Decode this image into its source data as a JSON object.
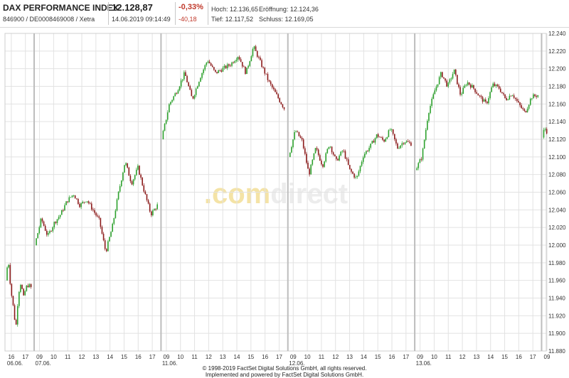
{
  "header": {
    "name": "DAX PERFORMANCE INDEX",
    "ids": "846900 / DE0008469008 / Xetra",
    "price": "12.128,87",
    "datetime": "14.06.2019 09:14:49",
    "change_pct": "-0,33%",
    "change_abs": "-40,18",
    "high": "Hoch: 12.136,65",
    "low": "Tief: 12.117,52",
    "open": "Eröffnung: 12.124,36",
    "close": "Schluss: 12.169,05"
  },
  "watermark": {
    "part1": ".com",
    "part2": "direct"
  },
  "colors": {
    "up": "#2ca02c",
    "down": "#8b1a1a",
    "grid": "#e2e2e2",
    "session": "#bdbdbd",
    "negative": "#c0392b",
    "watermark": "#f4e3a6"
  },
  "footer": {
    "line1": "© 1998-2019 FactSet Digital Solutions GmbH, all rights reserved.",
    "line2": "Implemented and powered by FactSet Digital Solutions GmbH."
  },
  "chart_data": {
    "type": "candlestick",
    "title": "",
    "xlabel": "",
    "ylabel": "",
    "ylim": [
      11880,
      12240
    ],
    "y_ticks": [
      "11.880",
      "11.900",
      "11.920",
      "11.940",
      "11.960",
      "11.980",
      "12.000",
      "12.020",
      "12.040",
      "12.060",
      "12.080",
      "12.100",
      "12.120",
      "12.140",
      "12.160",
      "12.180",
      "12.200",
      "12.220",
      "12.240"
    ],
    "y_tick_values": [
      11880,
      11900,
      11920,
      11940,
      11960,
      11980,
      12000,
      12020,
      12040,
      12060,
      12080,
      12100,
      12120,
      12140,
      12160,
      12180,
      12200,
      12220,
      12240
    ],
    "grid": true,
    "x_ticks": [
      {
        "hour": "16",
        "date": "06.06."
      },
      {
        "hour": "17",
        "date": ""
      },
      {
        "hour": "09",
        "date": "07.06."
      },
      {
        "hour": "10",
        "date": ""
      },
      {
        "hour": "11",
        "date": ""
      },
      {
        "hour": "12",
        "date": ""
      },
      {
        "hour": "13",
        "date": ""
      },
      {
        "hour": "14",
        "date": ""
      },
      {
        "hour": "15",
        "date": ""
      },
      {
        "hour": "16",
        "date": ""
      },
      {
        "hour": "17",
        "date": ""
      },
      {
        "hour": "09",
        "date": "11.06."
      },
      {
        "hour": "10",
        "date": ""
      },
      {
        "hour": "11",
        "date": ""
      },
      {
        "hour": "12",
        "date": ""
      },
      {
        "hour": "13",
        "date": ""
      },
      {
        "hour": "14",
        "date": ""
      },
      {
        "hour": "15",
        "date": ""
      },
      {
        "hour": "16",
        "date": ""
      },
      {
        "hour": "17",
        "date": ""
      },
      {
        "hour": "09",
        "date": "12.06."
      },
      {
        "hour": "10",
        "date": ""
      },
      {
        "hour": "11",
        "date": ""
      },
      {
        "hour": "12",
        "date": ""
      },
      {
        "hour": "13",
        "date": ""
      },
      {
        "hour": "14",
        "date": ""
      },
      {
        "hour": "15",
        "date": ""
      },
      {
        "hour": "16",
        "date": ""
      },
      {
        "hour": "17",
        "date": ""
      },
      {
        "hour": "09",
        "date": "13.06."
      },
      {
        "hour": "10",
        "date": ""
      },
      {
        "hour": "11",
        "date": ""
      },
      {
        "hour": "12",
        "date": ""
      },
      {
        "hour": "13",
        "date": ""
      },
      {
        "hour": "14",
        "date": ""
      },
      {
        "hour": "15",
        "date": ""
      },
      {
        "hour": "16",
        "date": ""
      },
      {
        "hour": "17",
        "date": ""
      },
      {
        "hour": "09",
        "date": ""
      }
    ],
    "sessions": [
      {
        "date": "06.06.",
        "hours": "15:30-17:30",
        "path": [
          11960,
          11985,
          11950,
          11930,
          11905,
          11945,
          11958,
          11940,
          11952,
          11955,
          11952
        ]
      },
      {
        "date": "07.06.",
        "hours": "09:00-17:30",
        "path": [
          12000,
          12030,
          12010,
          12025,
          12035,
          12050,
          12058,
          12045,
          12052,
          12040,
          12028,
          11992,
          12020,
          12060,
          12095,
          12070,
          12088,
          12060,
          12035,
          12045
        ]
      },
      {
        "date": "11.06.",
        "hours": "09:00-17:30",
        "path": [
          12120,
          12160,
          12175,
          12195,
          12165,
          12190,
          12210,
          12195,
          12200,
          12205,
          12215,
          12195,
          12225,
          12205,
          12185,
          12170,
          12155
        ]
      },
      {
        "date": "12.06.",
        "hours": "09:00-17:30",
        "path": [
          12100,
          12130,
          12118,
          12080,
          12110,
          12090,
          12115,
          12095,
          12108,
          12085,
          12075,
          12102,
          12112,
          12125,
          12118,
          12132,
          12110,
          12118,
          12115
        ]
      },
      {
        "date": "13.06.",
        "hours": "09:00-17:30",
        "path": [
          12085,
          12100,
          12150,
          12175,
          12195,
          12180,
          12198,
          12170,
          12185,
          12178,
          12168,
          12160,
          12182,
          12178,
          12165,
          12172,
          12160,
          12150,
          12168,
          12170
        ]
      },
      {
        "date": "14.06.",
        "hours": "09:00-09:15",
        "path": [
          12122,
          12133,
          12129
        ]
      }
    ]
  }
}
